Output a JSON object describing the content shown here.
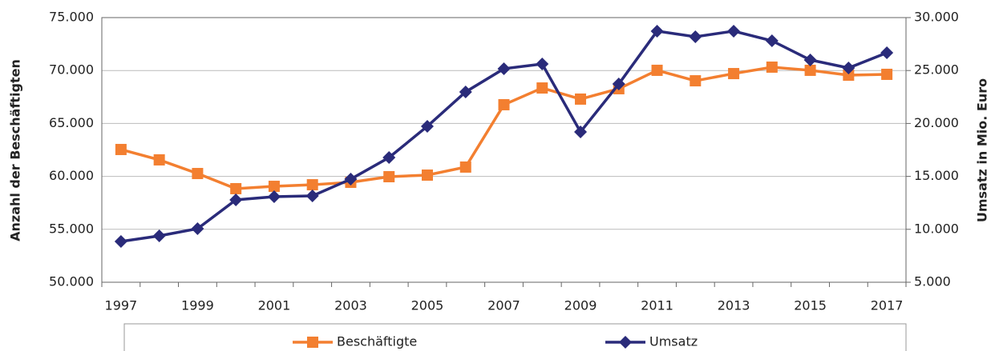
{
  "chart_data": {
    "type": "line",
    "categories": [
      "1997",
      null,
      "1999",
      null,
      "2001",
      null,
      "2003",
      null,
      "2005",
      null,
      "2007",
      null,
      "2009",
      null,
      "2011",
      null,
      "2013",
      null,
      "2015",
      null,
      "2017"
    ],
    "ylabel": "Anzahl der Beschäftigten",
    "y2label": "Umsatz in Mio. Euro",
    "ylim": [
      50000,
      75000
    ],
    "yticks": [
      {
        "value": 50000,
        "label": "50.000"
      },
      {
        "value": 55000,
        "label": "55.000"
      },
      {
        "value": 60000,
        "label": "60.000"
      },
      {
        "value": 65000,
        "label": "65.000"
      },
      {
        "value": 70000,
        "label": "70.000"
      },
      {
        "value": 75000,
        "label": "75.000"
      }
    ],
    "y2lim": [
      5000,
      30000
    ],
    "y2ticks": [
      {
        "value": 5000,
        "label": "5.000"
      },
      {
        "value": 10000,
        "label": "10.000"
      },
      {
        "value": 15000,
        "label": "15.000"
      },
      {
        "value": 20000,
        "label": "20.000"
      },
      {
        "value": 25000,
        "label": "25.000"
      },
      {
        "value": 30000,
        "label": "30.000"
      }
    ],
    "grid": true,
    "legend": "bottom",
    "series": [
      {
        "name": "Beschäftigte",
        "color": "#f37f30",
        "marker": "square",
        "values": [
          62540,
          61560,
          60270,
          58840,
          59060,
          59210,
          59440,
          59970,
          60120,
          60880,
          66770,
          68350,
          67300,
          68280,
          70020,
          69030,
          69710,
          70320,
          70020,
          69560,
          69640
        ]
      },
      {
        "name": "Umsatz",
        "color": "#2a2b7a",
        "marker": "diamond",
        "axis": "y2",
        "values": [
          8850,
          9380,
          10060,
          12780,
          13080,
          13160,
          14740,
          16780,
          19730,
          22980,
          25170,
          25620,
          19200,
          23730,
          28720,
          28190,
          28720,
          27810,
          26000,
          25240,
          26680
        ]
      }
    ]
  }
}
